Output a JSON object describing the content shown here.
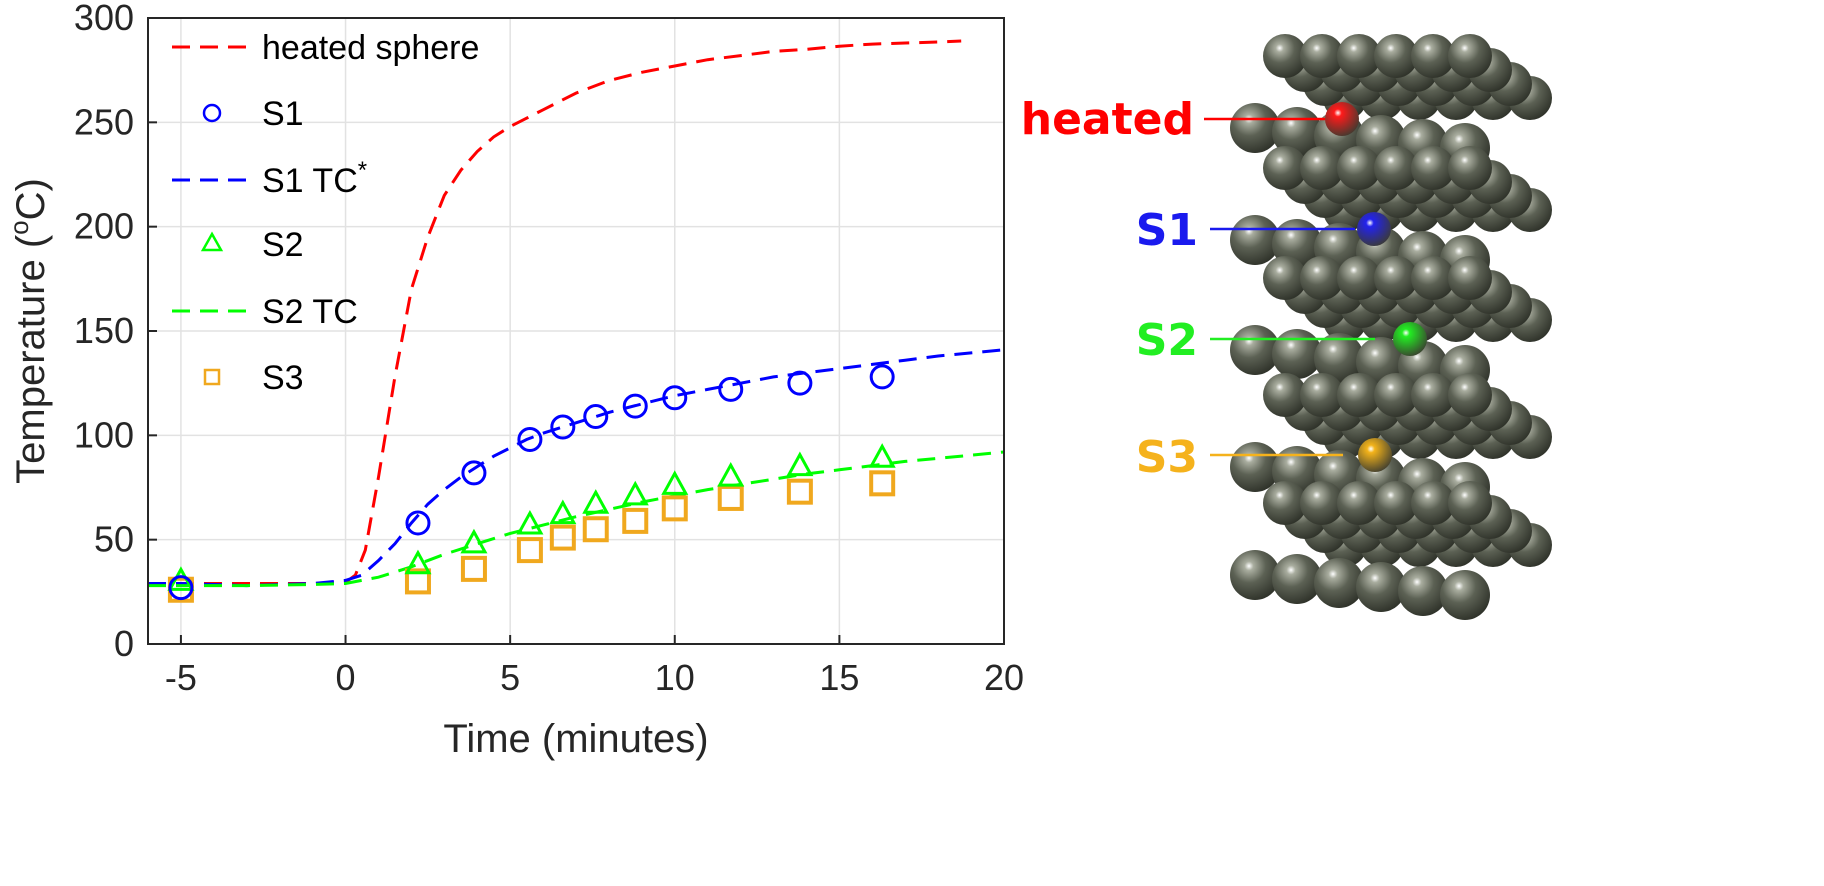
{
  "chart_data": {
    "type": "line",
    "xlabel": "Time (minutes)",
    "ylabel": "Temperature (",
    "ylabel_sup": "o",
    "ylabel_unit": "C)",
    "xlim": [
      -6,
      20
    ],
    "ylim": [
      0,
      300
    ],
    "xticks": [
      -5,
      0,
      5,
      10,
      15,
      20
    ],
    "yticks": [
      0,
      50,
      100,
      150,
      200,
      250,
      300
    ],
    "grid": true,
    "legend_position": "top-left",
    "series": [
      {
        "name": "heated sphere",
        "style": "dashed-line",
        "color": "#ff0000",
        "x": [
          -6,
          -5,
          -4,
          -3,
          -2,
          -1,
          0,
          0.3,
          0.6,
          1.0,
          1.5,
          2.0,
          2.5,
          3.0,
          3.5,
          4.0,
          4.5,
          5.0,
          5.5,
          6,
          7,
          8,
          9,
          10,
          11,
          12,
          13,
          14,
          15,
          16,
          17,
          18,
          18.7
        ],
        "y": [
          29,
          29,
          29,
          29,
          29,
          29,
          29.5,
          33,
          45,
          80,
          128,
          170,
          195,
          215,
          227,
          236,
          243,
          248,
          252,
          256,
          264,
          270,
          274,
          277,
          280,
          282,
          284,
          285,
          286.5,
          287.5,
          288,
          288.5,
          289
        ]
      },
      {
        "name": "S1",
        "style": "circle-marker",
        "color": "#0000ff",
        "x": [
          -5,
          2.2,
          3.9,
          5.6,
          6.6,
          7.6,
          8.8,
          10,
          11.7,
          13.8,
          16.3
        ],
        "y": [
          27,
          58,
          82,
          98,
          104,
          109,
          114,
          118,
          122,
          125,
          128
        ]
      },
      {
        "name": "S1 TC*",
        "name_base": "S1 TC",
        "name_sup": "*",
        "style": "dashed-line",
        "color": "#0000ff",
        "x": [
          -6,
          -5,
          -3,
          -1,
          0,
          0.5,
          1,
          1.5,
          2,
          2.5,
          3,
          3.5,
          4,
          4.5,
          5,
          5.5,
          6,
          7,
          8,
          9,
          10,
          11,
          12,
          13,
          14,
          15,
          16,
          17,
          18,
          19,
          20
        ],
        "y": [
          29,
          29,
          28,
          29,
          30.5,
          33,
          40,
          48,
          58,
          67,
          74,
          80,
          85,
          90,
          94,
          98,
          101,
          106,
          111,
          115,
          119,
          122,
          125,
          128,
          130,
          132,
          134,
          136,
          138,
          139.5,
          141
        ]
      },
      {
        "name": "S2",
        "style": "triangle-marker",
        "color": "#00ff00",
        "x": [
          -5,
          2.2,
          3.9,
          5.6,
          6.6,
          7.6,
          8.8,
          10,
          11.7,
          13.8,
          16.3
        ],
        "y": [
          30,
          38,
          48,
          57,
          62,
          67,
          71,
          76,
          80,
          85,
          89
        ]
      },
      {
        "name": "S2 TC",
        "style": "dashed-line",
        "color": "#00ff00",
        "x": [
          -6,
          -5,
          -3,
          -1,
          0,
          1,
          2,
          3,
          4,
          5,
          6,
          7,
          8,
          9,
          10,
          11,
          12,
          13,
          14,
          15,
          16,
          17,
          18,
          19,
          20
        ],
        "y": [
          28,
          28,
          28,
          28.5,
          29,
          32,
          37,
          43,
          48,
          53,
          57,
          61,
          64.5,
          68,
          71,
          74,
          76.5,
          79,
          81.5,
          83.5,
          85.5,
          87.5,
          89,
          90.5,
          92
        ]
      },
      {
        "name": "S3",
        "style": "square-marker",
        "color": "#f0a81e",
        "x": [
          -5,
          2.2,
          3.9,
          5.6,
          6.6,
          7.6,
          8.8,
          10,
          11.7,
          13.8,
          16.3
        ],
        "y": [
          26,
          30,
          36,
          45,
          51,
          55,
          59,
          65,
          70,
          73,
          77
        ]
      }
    ]
  },
  "schematic": {
    "layers": [
      {
        "label": "heated",
        "color": "#ff0000",
        "highlight": "#ff1a1a"
      },
      {
        "label": "S1",
        "color": "#1a1aee",
        "highlight": "#2222ee"
      },
      {
        "label": "S2",
        "color": "#22ee22",
        "highlight": "#22ee22"
      },
      {
        "label": "S3",
        "color": "#f5b21c",
        "highlight": "#f3b31a"
      },
      {
        "label": "",
        "color": "",
        "highlight": ""
      }
    ]
  }
}
